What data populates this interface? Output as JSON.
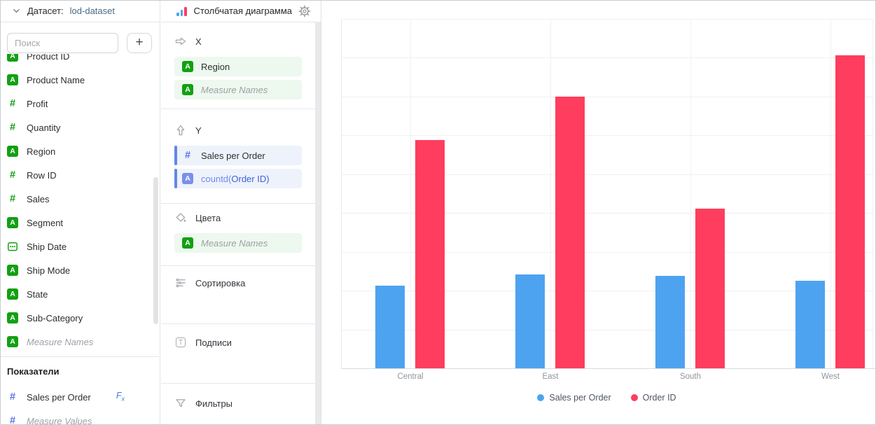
{
  "dataset_panel": {
    "header": {
      "label": "Датасет:",
      "name": "lod-dataset"
    },
    "search": {
      "placeholder": "Поиск",
      "add_label": "+"
    },
    "fields": [
      {
        "label": "Product ID",
        "type": "dim-string"
      },
      {
        "label": "Product Name",
        "type": "dim-string"
      },
      {
        "label": "Profit",
        "type": "dim-number"
      },
      {
        "label": "Quantity",
        "type": "dim-number"
      },
      {
        "label": "Region",
        "type": "dim-string"
      },
      {
        "label": "Row ID",
        "type": "dim-number"
      },
      {
        "label": "Sales",
        "type": "dim-number"
      },
      {
        "label": "Segment",
        "type": "dim-string"
      },
      {
        "label": "Ship Date",
        "type": "dim-date"
      },
      {
        "label": "Ship Mode",
        "type": "dim-string"
      },
      {
        "label": "State",
        "type": "dim-string"
      },
      {
        "label": "Sub-Category",
        "type": "dim-string"
      },
      {
        "label": "Measure Names",
        "type": "dim-string",
        "italic": true
      }
    ],
    "measures_header": "Показатели",
    "measures": [
      {
        "label": "Sales per Order",
        "type": "measure-number",
        "formula": true
      },
      {
        "label": "Measure Values",
        "type": "measure-number",
        "italic": true
      }
    ]
  },
  "config_panel": {
    "title": "Столбчатая диаграмма",
    "sections": [
      {
        "label": "X",
        "icon": "arrow-right",
        "items": [
          {
            "label": "Region",
            "style": "green",
            "icon": "A-green"
          },
          {
            "label": "Measure Names",
            "style": "green",
            "icon": "A-green",
            "italic": true
          }
        ]
      },
      {
        "label": "Y",
        "icon": "arrow-up",
        "items": [
          {
            "label": "Sales per Order",
            "style": "blue",
            "icon": "hash-blue"
          },
          {
            "label": "countd(Order ID)",
            "style": "blue",
            "icon": "A-blue",
            "formula_fn": "countd",
            "formula_arg": "Order ID"
          }
        ]
      },
      {
        "label": "Цвета",
        "icon": "paint",
        "items": [
          {
            "label": "Measure Names",
            "style": "green",
            "icon": "A-green",
            "italic": true
          }
        ]
      },
      {
        "label": "Сортировка",
        "icon": "sort",
        "items": []
      },
      {
        "label": "Подписи",
        "icon": "labels",
        "items": []
      },
      {
        "label": "Фильтры",
        "icon": "filter",
        "items": []
      }
    ]
  },
  "chart_data": {
    "type": "bar",
    "title": "",
    "categories": [
      "Central",
      "East",
      "South",
      "West"
    ],
    "series": [
      {
        "name": "Sales per Order",
        "color": "#4DA3F0",
        "values": [
          427,
          484,
          477,
          450
        ]
      },
      {
        "name": "Order ID",
        "color": "#FF3D5E",
        "values": [
          1175,
          1401,
          822,
          1611
        ]
      }
    ],
    "ylim": [
      0,
      1800
    ],
    "grid_step": 200,
    "grid": true,
    "y_axis_labels_visible": false,
    "legend_position": "bottom"
  },
  "icons": {
    "string_badge": "A",
    "number_badge": "#",
    "formula_badge": "Fx",
    "labels_glyph": "T",
    "add_glyph": "+"
  },
  "colors": {
    "dimension_green": "#12A012",
    "measure_blue": "#5876E6",
    "measure_badge_blue": "#7A8FE8",
    "chip_green_bg": "#EDF8EE",
    "chip_blue_bg": "#EEF2FB",
    "chip_blue_border": "#6287EA",
    "formula_fn_blue": "#6C8CEE",
    "formula_arg_blue": "#3E62DA",
    "fx_blue": "#3D7BF2",
    "dataset_name_blue": "#4D6A85",
    "series_blue": "#4DA3F0",
    "series_red": "#FF3D5E"
  }
}
